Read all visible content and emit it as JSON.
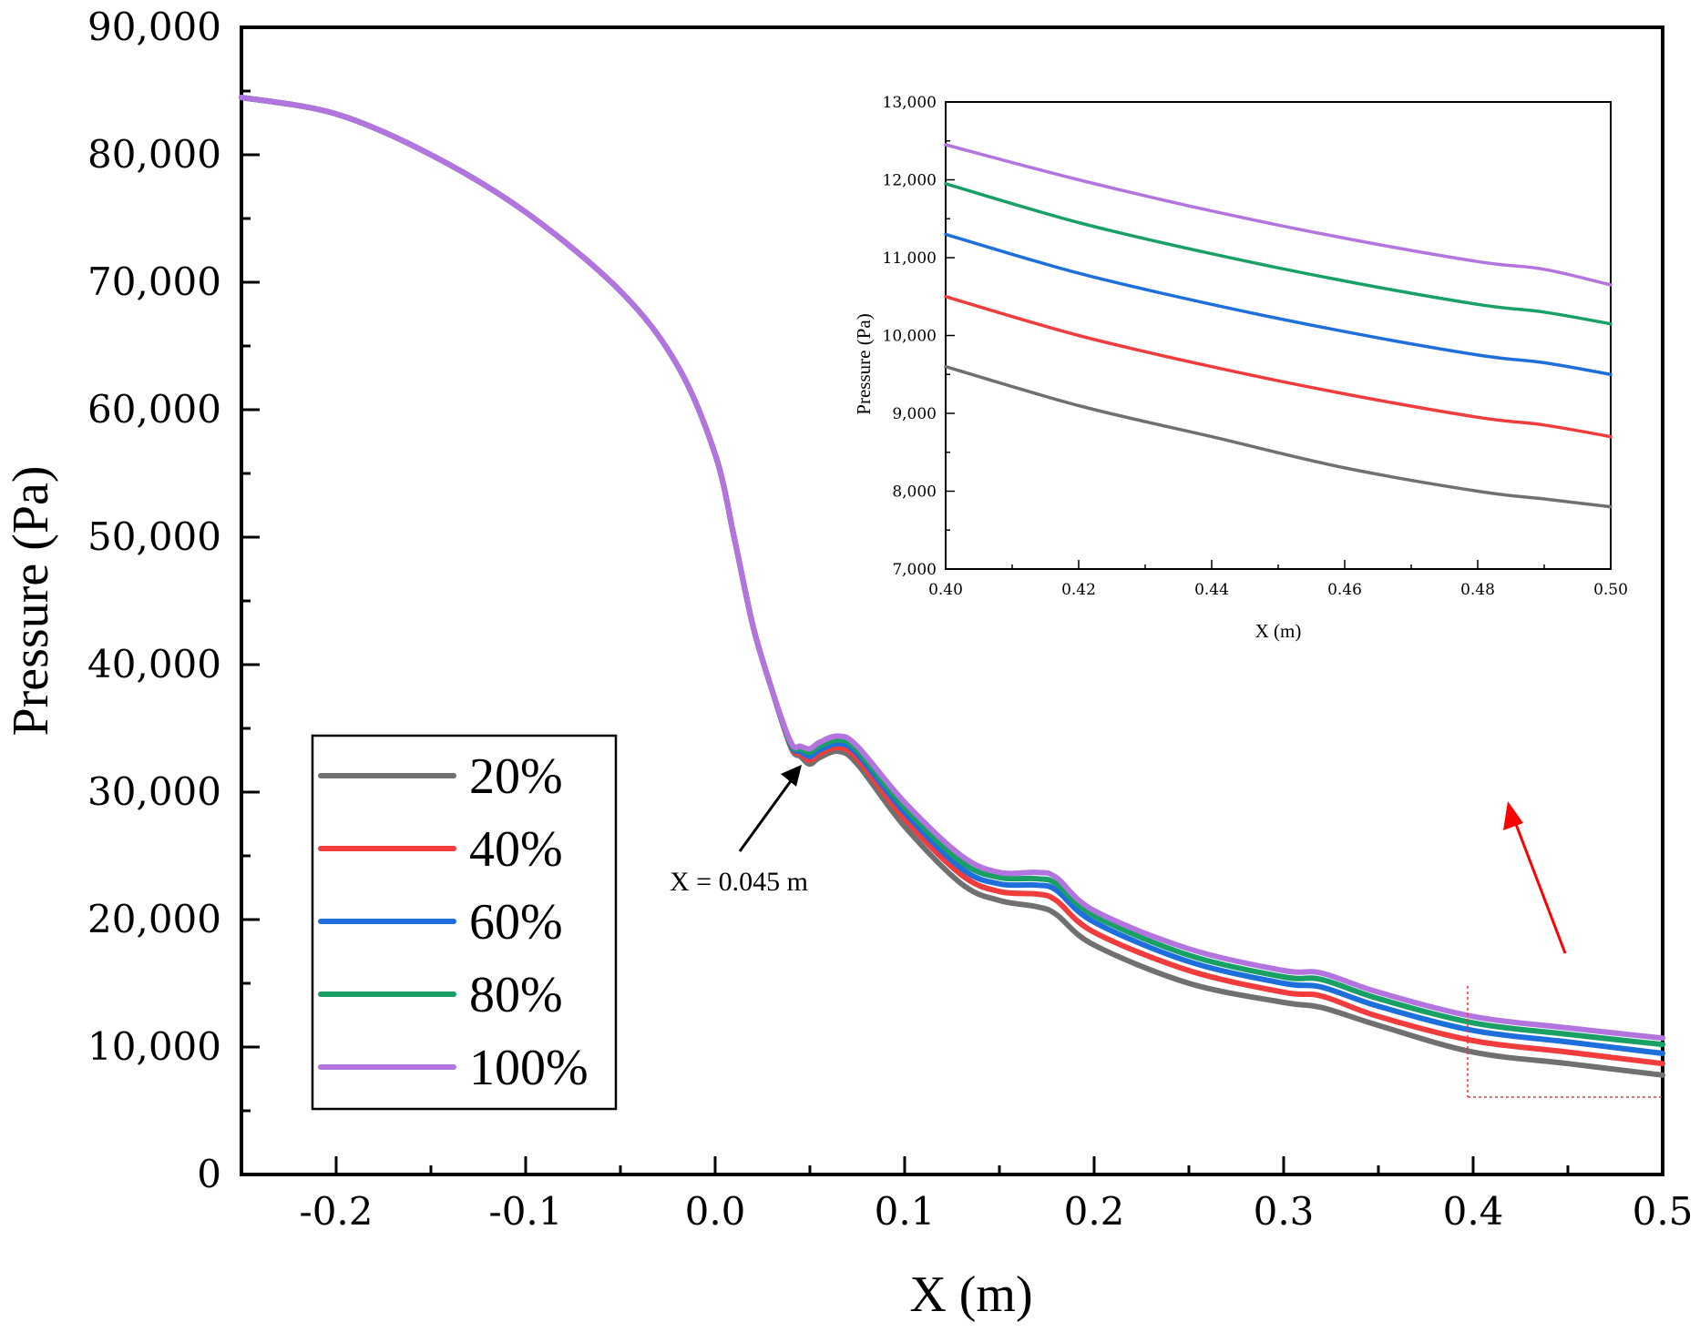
{
  "chart_data": [
    {
      "type": "line",
      "xlabel": "X (m)",
      "ylabel": "Pressure (Pa)",
      "xlim": [
        -0.25,
        0.5
      ],
      "ylim": [
        0,
        90000
      ],
      "xticks": [
        -0.2,
        -0.1,
        0.0,
        0.1,
        0.2,
        0.3,
        0.4,
        0.5
      ],
      "xtick_labels": [
        "-0.2",
        "-0.1",
        "0.0",
        "0.1",
        "0.2",
        "0.3",
        "0.4",
        "0.5"
      ],
      "yticks": [
        0,
        10000,
        20000,
        30000,
        40000,
        50000,
        60000,
        70000,
        80000,
        90000
      ],
      "ytick_labels": [
        "0",
        "10,000",
        "20,000",
        "30,000",
        "40,000",
        "50,000",
        "60,000",
        "70,000",
        "80,000",
        "90,000"
      ],
      "legend_placement": "bottom-left",
      "annotation": "X = 0.045 m",
      "x": [
        -0.25,
        -0.2,
        -0.15,
        -0.1,
        -0.05,
        -0.02,
        0.0,
        0.01,
        0.02,
        0.03,
        0.04,
        0.045,
        0.05,
        0.055,
        0.065,
        0.075,
        0.1,
        0.13,
        0.15,
        0.17,
        0.18,
        0.2,
        0.25,
        0.3,
        0.32,
        0.35,
        0.4,
        0.45,
        0.5
      ],
      "series": [
        {
          "name": "20%",
          "color": "#707070",
          "values": [
            84500,
            83200,
            80000,
            75500,
            69300,
            63500,
            56500,
            50000,
            43000,
            38000,
            33500,
            32800,
            32200,
            32700,
            33200,
            32200,
            27300,
            22800,
            21500,
            21000,
            20400,
            18000,
            15000,
            13500,
            13100,
            11700,
            9600,
            8700,
            7800
          ]
        },
        {
          "name": "40%",
          "color": "#f03c3c",
          "values": [
            84500,
            83200,
            80000,
            75500,
            69300,
            63500,
            56500,
            50000,
            43000,
            38000,
            33600,
            33000,
            32500,
            33000,
            33500,
            32600,
            27900,
            23500,
            22200,
            22000,
            21500,
            19000,
            16000,
            14300,
            14000,
            12400,
            10500,
            9600,
            8700
          ]
        },
        {
          "name": "60%",
          "color": "#1e6fdc",
          "values": [
            84500,
            83200,
            80000,
            75500,
            69300,
            63500,
            56500,
            50000,
            43000,
            38000,
            33700,
            33200,
            32800,
            33300,
            33800,
            33000,
            28400,
            24000,
            22800,
            22700,
            22300,
            19800,
            16700,
            15000,
            14700,
            13200,
            11300,
            10400,
            9500
          ]
        },
        {
          "name": "80%",
          "color": "#19a064",
          "values": [
            84500,
            83200,
            80000,
            75500,
            69300,
            63500,
            56500,
            50000,
            43000,
            38000,
            33800,
            33400,
            33100,
            33600,
            34100,
            33300,
            28800,
            24500,
            23300,
            23200,
            22800,
            20300,
            17200,
            15500,
            15300,
            13800,
            11900,
            11000,
            10200
          ]
        },
        {
          "name": "100%",
          "color": "#b474e0",
          "values": [
            84500,
            83200,
            80000,
            75500,
            69300,
            63500,
            56500,
            50000,
            43000,
            38000,
            33900,
            33600,
            33400,
            33900,
            34400,
            33600,
            29200,
            25000,
            23700,
            23700,
            23300,
            20700,
            17700,
            16000,
            15800,
            14300,
            12400,
            11500,
            10700
          ]
        }
      ]
    },
    {
      "type": "line",
      "xlabel": "X (m)",
      "ylabel": "Pressure (Pa)",
      "xlim": [
        0.4,
        0.5
      ],
      "ylim": [
        7000,
        13000
      ],
      "xticks": [
        0.4,
        0.42,
        0.44,
        0.46,
        0.48,
        0.5
      ],
      "xtick_labels": [
        "0.40",
        "0.42",
        "0.44",
        "0.46",
        "0.48",
        "0.50"
      ],
      "yticks": [
        7000,
        8000,
        9000,
        10000,
        11000,
        12000,
        13000
      ],
      "ytick_labels": [
        "7,000",
        "8,000",
        "9,000",
        "10,000",
        "11,000",
        "12,000",
        "13,000"
      ],
      "x": [
        0.4,
        0.42,
        0.44,
        0.46,
        0.48,
        0.49,
        0.5
      ],
      "series": [
        {
          "name": "20%",
          "color": "#707070",
          "values": [
            9600,
            9100,
            8700,
            8300,
            8000,
            7900,
            7800
          ]
        },
        {
          "name": "40%",
          "color": "#f03c3c",
          "values": [
            10500,
            10000,
            9600,
            9250,
            8950,
            8850,
            8700
          ]
        },
        {
          "name": "60%",
          "color": "#1e6fdc",
          "values": [
            11300,
            10800,
            10400,
            10050,
            9750,
            9650,
            9500
          ]
        },
        {
          "name": "80%",
          "color": "#19a064",
          "values": [
            11950,
            11450,
            11050,
            10700,
            10400,
            10300,
            10150
          ]
        },
        {
          "name": "100%",
          "color": "#b474e0",
          "values": [
            12450,
            12000,
            11600,
            11250,
            10950,
            10850,
            10650
          ]
        }
      ]
    }
  ]
}
